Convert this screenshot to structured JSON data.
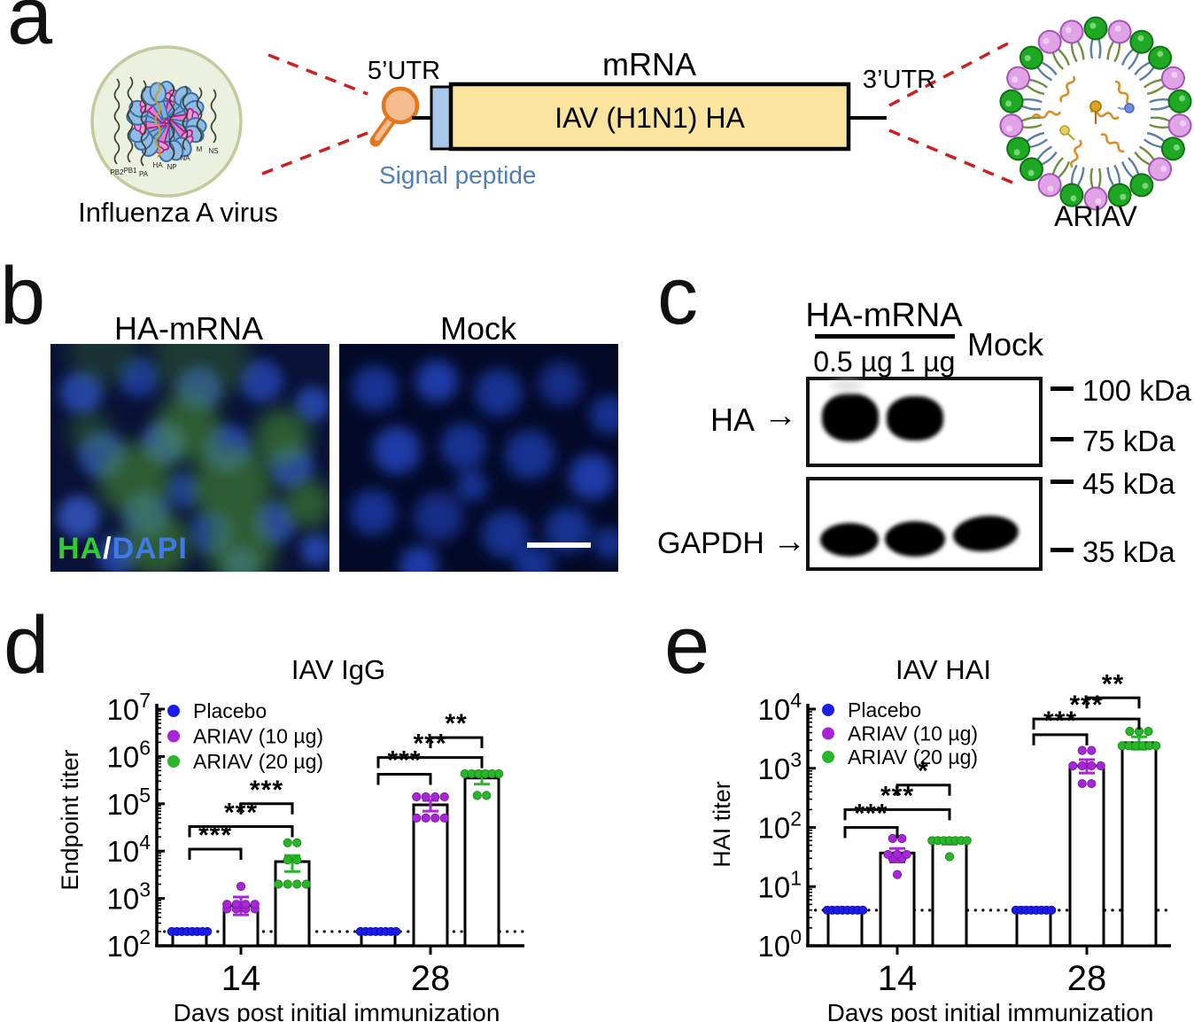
{
  "figure": {
    "letters": {
      "a": "a",
      "b": "b",
      "c": "c",
      "d": "d",
      "e": "e"
    }
  },
  "panel_a": {
    "virus_label": "Influenza A virus",
    "segments": [
      "PB2",
      "PB1",
      "PA",
      "HA",
      "NP",
      "NA",
      "M",
      "NS"
    ],
    "utr5": "5’UTR",
    "mrna": "mRNA",
    "utr3": "3’UTR",
    "signal_peptide": "Signal peptide",
    "cds": "IAV (H1N1) HA",
    "ariav_label": "ARIAV",
    "colors": {
      "cds_fill": "#fbe49e",
      "signal_fill": "#a9c7e9",
      "signal_text": "#4e7fb5",
      "cap_orange": "#e0781f",
      "dash_red": "#cc2020",
      "spike_blue": "#8fbce4",
      "spike_pink": "#e07fd0",
      "lipid_green": "#1fa824",
      "lipid_plum": "#dfa3e6"
    }
  },
  "panel_b": {
    "left_title": "HA-mRNA",
    "right_title": "Mock",
    "overlay": {
      "ha": "HA",
      "slash": "/",
      "dapi": "DAPI"
    },
    "colors": {
      "ha_green": "#2ecc2e",
      "dapi_blue": "#4079e8"
    }
  },
  "panel_c": {
    "header": "HA-mRNA",
    "lane1": "0.5 µg",
    "lane2": "1 µg",
    "lane3": "Mock",
    "protein1": "HA",
    "protein2": "GAPDH",
    "arrow": "→",
    "markers": [
      "100 kDa",
      "75 kDa",
      "45 kDa",
      "35 kDa"
    ]
  },
  "chart_data": [
    {
      "type": "bar",
      "title": "IAV IgG",
      "ylabel": "Endpoint titer",
      "xlabel": "Days post initial immunization",
      "yscale": "log",
      "ylim_exp": [
        2,
        7
      ],
      "grid": false,
      "legend_position": "top-left-inside",
      "baseline": 200,
      "baseline_note": "detection limit (dotted line)",
      "categories": [
        "14",
        "28"
      ],
      "series": [
        {
          "name": "Placebo",
          "color": "#1c1ce8",
          "dark": "#0f0fb0"
        },
        {
          "name": "ARIAV (10 µg)",
          "color": "#a826d8",
          "dark": "#7d1ba6"
        },
        {
          "name": "ARIAV (20 µg)",
          "color": "#2ab62a",
          "dark": "#1d8c1d"
        }
      ],
      "bars": [
        {
          "group": "14",
          "series": 0,
          "mean": 200,
          "dots": [
            200,
            200,
            200,
            200,
            200,
            200,
            200,
            200
          ]
        },
        {
          "group": "14",
          "series": 1,
          "mean": 700,
          "err": [
            450,
            1070
          ],
          "dots": [
            1800,
            750,
            750,
            750,
            750,
            600,
            600,
            600,
            600
          ]
        },
        {
          "group": "14",
          "series": 2,
          "mean": 6000,
          "err": [
            3700,
            8100
          ],
          "dots": [
            15000,
            15000,
            6500,
            6500,
            2000,
            2000,
            2000,
            2000
          ]
        },
        {
          "group": "28",
          "series": 0,
          "mean": 200,
          "dots": [
            200,
            200,
            200,
            200,
            200,
            200,
            200,
            200
          ]
        },
        {
          "group": "28",
          "series": 1,
          "mean": 95000,
          "err": [
            70000,
            118000
          ],
          "dots": [
            140000,
            140000,
            140000,
            140000,
            50000,
            50000,
            50000,
            50000
          ]
        },
        {
          "group": "28",
          "series": 2,
          "mean": 350000,
          "err": [
            260000,
            480000
          ],
          "dots": [
            430000,
            430000,
            430000,
            430000,
            430000,
            430000,
            150000,
            150000
          ]
        }
      ],
      "brackets": [
        {
          "from": 0,
          "to": 1,
          "label": "***",
          "at": 11000
        },
        {
          "from": 0,
          "to": 2,
          "label": "***",
          "at": 33000
        },
        {
          "from": 1,
          "to": 2,
          "label": "***",
          "at": 100000
        },
        {
          "from": 3,
          "to": 4,
          "label": "***",
          "at": 420000
        },
        {
          "from": 3,
          "to": 5,
          "label": "***",
          "at": 950000
        },
        {
          "from": 4,
          "to": 5,
          "label": "**",
          "at": 2500000
        }
      ]
    },
    {
      "type": "bar",
      "title": "IAV HAI",
      "ylabel": "HAI titer",
      "xlabel": "Days post initial immunization",
      "yscale": "log",
      "ylim_exp": [
        0,
        4
      ],
      "grid": false,
      "legend_position": "top-left-inside",
      "baseline": 4,
      "baseline_note": "detection limit (dotted line)",
      "categories": [
        "14",
        "28"
      ],
      "series": [
        {
          "name": "Placebo",
          "color": "#1c1ce8",
          "dark": "#0f0fb0"
        },
        {
          "name": "ARIAV (10 µg)",
          "color": "#a826d8",
          "dark": "#7d1ba6"
        },
        {
          "name": "ARIAV (20 µg)",
          "color": "#2ab62a",
          "dark": "#1d8c1d"
        }
      ],
      "bars": [
        {
          "group": "14",
          "series": 0,
          "mean": 4,
          "dots": [
            4,
            4,
            4,
            4,
            4,
            4,
            4,
            4
          ]
        },
        {
          "group": "14",
          "series": 1,
          "mean": 37,
          "err": [
            26,
            44
          ],
          "dots": [
            65,
            65,
            35,
            35,
            35,
            30,
            30,
            16
          ]
        },
        {
          "group": "14",
          "series": 2,
          "mean": 58,
          "err": [
            52,
            66
          ],
          "dots": [
            60,
            60,
            60,
            60,
            60,
            60,
            60,
            32
          ]
        },
        {
          "group": "28",
          "series": 0,
          "mean": 4,
          "dots": [
            4,
            4,
            4,
            4,
            4,
            4,
            4,
            4
          ]
        },
        {
          "group": "28",
          "series": 1,
          "mean": 1100,
          "err": [
            830,
            1400
          ],
          "dots": [
            2000,
            2000,
            1100,
            1100,
            1100,
            1100,
            550,
            550
          ]
        },
        {
          "group": "28",
          "series": 2,
          "mean": 2700,
          "err": [
            2100,
            3400
          ],
          "dots": [
            4200,
            4200,
            4200,
            2400,
            2400,
            2400,
            2400,
            2400,
            2400
          ]
        }
      ],
      "brackets": [
        {
          "from": 0,
          "to": 1,
          "label": "***",
          "at": 100
        },
        {
          "from": 0,
          "to": 2,
          "label": "***",
          "at": 200
        },
        {
          "from": 1,
          "to": 2,
          "label": "*",
          "at": 520
        },
        {
          "from": 3,
          "to": 4,
          "label": "***",
          "at": 3700
        },
        {
          "from": 3,
          "to": 5,
          "label": "***",
          "at": 6800
        },
        {
          "from": 4,
          "to": 5,
          "label": "**",
          "at": 15500
        }
      ]
    }
  ]
}
